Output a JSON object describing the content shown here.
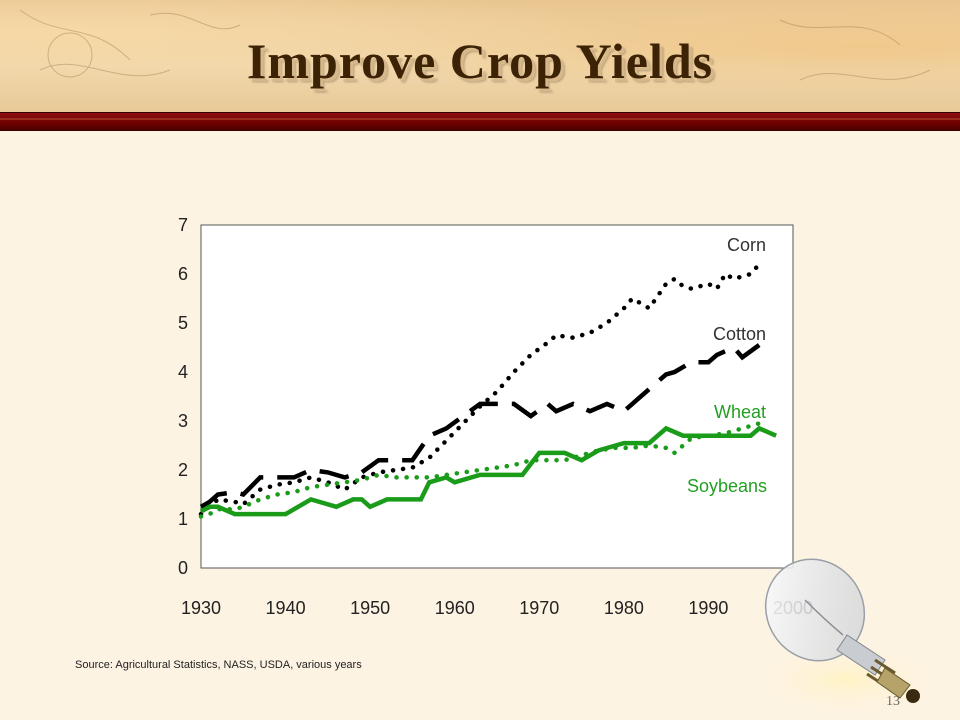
{
  "slide": {
    "title": "Improve Crop Yields",
    "source": "Source: Agricultural Statistics, NASS, USDA, various years",
    "page_number": "13"
  },
  "chart_data": {
    "type": "line",
    "title": "",
    "xlabel": "",
    "ylabel": "",
    "xlim": [
      1930,
      2000
    ],
    "ylim": [
      0,
      7
    ],
    "x_ticks": [
      "1930",
      "1940",
      "1950",
      "1960",
      "1970",
      "1980",
      "1990",
      "2000"
    ],
    "y_ticks": [
      "0",
      "1",
      "2",
      "3",
      "4",
      "5",
      "6",
      "7"
    ],
    "grid": false,
    "series": [
      {
        "name": "Corn",
        "style": "dotted",
        "color": "#000000",
        "points": [
          [
            1930,
            1.1
          ],
          [
            1931,
            1.25
          ],
          [
            1932,
            1.4
          ],
          [
            1934,
            1.35
          ],
          [
            1935,
            1.3
          ],
          [
            1937,
            1.6
          ],
          [
            1939,
            1.7
          ],
          [
            1941,
            1.75
          ],
          [
            1943,
            1.85
          ],
          [
            1945,
            1.75
          ],
          [
            1947,
            1.6
          ],
          [
            1949,
            1.85
          ],
          [
            1951,
            1.95
          ],
          [
            1953,
            2.0
          ],
          [
            1955,
            2.05
          ],
          [
            1957,
            2.25
          ],
          [
            1959,
            2.6
          ],
          [
            1961,
            2.95
          ],
          [
            1963,
            3.3
          ],
          [
            1965,
            3.6
          ],
          [
            1967,
            4.0
          ],
          [
            1969,
            4.35
          ],
          [
            1971,
            4.6
          ],
          [
            1972,
            4.75
          ],
          [
            1974,
            4.7
          ],
          [
            1976,
            4.8
          ],
          [
            1978,
            5.0
          ],
          [
            1980,
            5.3
          ],
          [
            1981,
            5.5
          ],
          [
            1982,
            5.4
          ],
          [
            1983,
            5.3
          ],
          [
            1985,
            5.8
          ],
          [
            1986,
            5.9
          ],
          [
            1987,
            5.75
          ],
          [
            1988,
            5.7
          ],
          [
            1990,
            5.8
          ],
          [
            1991,
            5.7
          ],
          [
            1992,
            6.0
          ],
          [
            1993,
            5.9
          ],
          [
            1995,
            6.0
          ],
          [
            1996,
            6.2
          ]
        ]
      },
      {
        "name": "Cotton",
        "style": "dashed",
        "color": "#000000",
        "points": [
          [
            1930,
            1.25
          ],
          [
            1931,
            1.35
          ],
          [
            1932,
            1.5
          ],
          [
            1934,
            1.55
          ],
          [
            1935,
            1.5
          ],
          [
            1937,
            1.85
          ],
          [
            1939,
            1.85
          ],
          [
            1941,
            1.85
          ],
          [
            1943,
            2.0
          ],
          [
            1945,
            1.95
          ],
          [
            1947,
            1.85
          ],
          [
            1949,
            1.95
          ],
          [
            1951,
            2.2
          ],
          [
            1953,
            2.2
          ],
          [
            1955,
            2.2
          ],
          [
            1957,
            2.7
          ],
          [
            1959,
            2.85
          ],
          [
            1961,
            3.1
          ],
          [
            1963,
            3.35
          ],
          [
            1965,
            3.35
          ],
          [
            1967,
            3.35
          ],
          [
            1969,
            3.1
          ],
          [
            1971,
            3.35
          ],
          [
            1972,
            3.2
          ],
          [
            1974,
            3.35
          ],
          [
            1976,
            3.2
          ],
          [
            1978,
            3.35
          ],
          [
            1980,
            3.2
          ],
          [
            1981,
            3.35
          ],
          [
            1983,
            3.65
          ],
          [
            1985,
            3.95
          ],
          [
            1986,
            4.0
          ],
          [
            1988,
            4.2
          ],
          [
            1990,
            4.2
          ],
          [
            1991,
            4.35
          ],
          [
            1993,
            4.5
          ],
          [
            1994,
            4.3
          ],
          [
            1996,
            4.55
          ]
        ]
      },
      {
        "name": "Wheat",
        "style": "dotted",
        "color": "#1a9c1a",
        "points": [
          [
            1930,
            1.05
          ],
          [
            1931,
            1.1
          ],
          [
            1932,
            1.2
          ],
          [
            1934,
            1.2
          ],
          [
            1935,
            1.25
          ],
          [
            1937,
            1.4
          ],
          [
            1939,
            1.5
          ],
          [
            1941,
            1.55
          ],
          [
            1943,
            1.65
          ],
          [
            1945,
            1.7
          ],
          [
            1947,
            1.75
          ],
          [
            1949,
            1.8
          ],
          [
            1951,
            1.9
          ],
          [
            1953,
            1.85
          ],
          [
            1955,
            1.85
          ],
          [
            1957,
            1.85
          ],
          [
            1959,
            1.9
          ],
          [
            1961,
            1.95
          ],
          [
            1963,
            2.0
          ],
          [
            1965,
            2.05
          ],
          [
            1967,
            2.1
          ],
          [
            1969,
            2.2
          ],
          [
            1971,
            2.2
          ],
          [
            1973,
            2.2
          ],
          [
            1975,
            2.3
          ],
          [
            1977,
            2.4
          ],
          [
            1979,
            2.45
          ],
          [
            1981,
            2.45
          ],
          [
            1983,
            2.5
          ],
          [
            1985,
            2.45
          ],
          [
            1986,
            2.35
          ],
          [
            1988,
            2.65
          ],
          [
            1990,
            2.7
          ],
          [
            1992,
            2.75
          ],
          [
            1994,
            2.85
          ],
          [
            1996,
            2.95
          ]
        ]
      },
      {
        "name": "Soybeans",
        "style": "solid",
        "color": "#1a9c1a",
        "points": [
          [
            1930,
            1.15
          ],
          [
            1931,
            1.25
          ],
          [
            1932,
            1.25
          ],
          [
            1934,
            1.1
          ],
          [
            1936,
            1.1
          ],
          [
            1938,
            1.1
          ],
          [
            1940,
            1.1
          ],
          [
            1943,
            1.4
          ],
          [
            1946,
            1.25
          ],
          [
            1948,
            1.4
          ],
          [
            1949,
            1.4
          ],
          [
            1950,
            1.25
          ],
          [
            1952,
            1.4
          ],
          [
            1955,
            1.4
          ],
          [
            1956,
            1.4
          ],
          [
            1957,
            1.75
          ],
          [
            1959,
            1.85
          ],
          [
            1960,
            1.75
          ],
          [
            1963,
            1.9
          ],
          [
            1965,
            1.9
          ],
          [
            1968,
            1.9
          ],
          [
            1970,
            2.35
          ],
          [
            1971,
            2.35
          ],
          [
            1973,
            2.35
          ],
          [
            1975,
            2.2
          ],
          [
            1977,
            2.4
          ],
          [
            1980,
            2.55
          ],
          [
            1983,
            2.55
          ],
          [
            1985,
            2.85
          ],
          [
            1987,
            2.7
          ],
          [
            1990,
            2.7
          ],
          [
            1993,
            2.7
          ],
          [
            1995,
            2.7
          ],
          [
            1996,
            2.85
          ],
          [
            1998,
            2.7
          ]
        ]
      }
    ],
    "labels": {
      "corn": "Corn",
      "cotton": "Cotton",
      "wheat": "Wheat",
      "soybeans": "Soybeans"
    }
  }
}
